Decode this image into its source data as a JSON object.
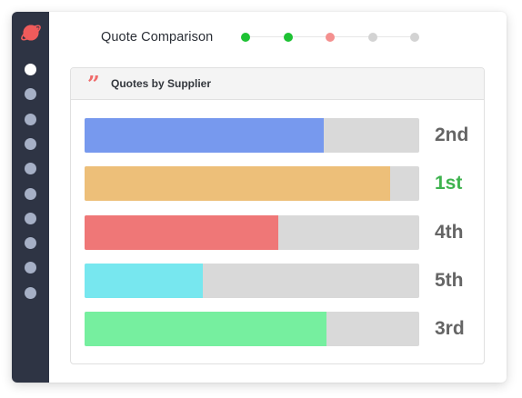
{
  "header": {
    "title": "Quote Comparison",
    "steps": [
      {
        "state": "complete",
        "color": "#1ec234"
      },
      {
        "state": "complete",
        "color": "#1ec234"
      },
      {
        "state": "current",
        "color": "#f4908f"
      },
      {
        "state": "pending",
        "color": "#d3d3d3"
      },
      {
        "state": "pending",
        "color": "#d3d3d3"
      }
    ]
  },
  "sidebar": {
    "logo_icon": "planet-icon",
    "logo_color": "#ef5b5b",
    "item_count": 10,
    "active_index": 0
  },
  "panel": {
    "title": "Quotes by Supplier",
    "icon": "quote-icon"
  },
  "chart_data": {
    "type": "bar",
    "orientation": "horizontal",
    "title": "Quotes by Supplier",
    "categories": [
      "2nd",
      "1st",
      "4th",
      "5th",
      "3rd"
    ],
    "values": [
      0.716,
      0.913,
      0.579,
      0.353,
      0.723
    ],
    "value_unit": "fraction of bar",
    "xlim": [
      0,
      1
    ],
    "colors": [
      "#7799ee",
      "#edbf79",
      "#ef7777",
      "#77e7ef",
      "#76ef9f"
    ],
    "track_color": "#d9d9d9",
    "label_colors": [
      "#656565",
      "#3fb34f",
      "#656565",
      "#656565",
      "#656565"
    ],
    "grid": false,
    "legend": "none"
  }
}
